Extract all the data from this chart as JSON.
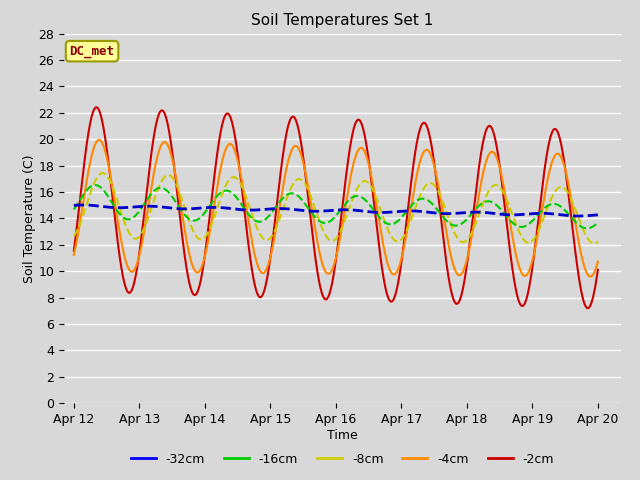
{
  "title": "Soil Temperatures Set 1",
  "xlabel": "Time",
  "ylabel": "Soil Temperature (C)",
  "annotation": "DC_met",
  "annotation_color": "#8b0000",
  "annotation_bg": "#ffff99",
  "annotation_edge": "#999900",
  "bg_color": "#d8d8d8",
  "ylim": [
    0,
    28
  ],
  "yticks": [
    0,
    2,
    4,
    6,
    8,
    10,
    12,
    14,
    16,
    18,
    20,
    22,
    24,
    26,
    28
  ],
  "x_tick_labels": [
    "Apr 12",
    "Apr 13",
    "Apr 14",
    "Apr 15",
    "Apr 16",
    "Apr 17",
    "Apr 18",
    "Apr 19",
    "Apr 20"
  ],
  "x_tick_positions": [
    0,
    1,
    2,
    3,
    4,
    5,
    6,
    7,
    8
  ],
  "legend_labels": [
    "-32cm",
    "-16cm",
    "-8cm",
    "-4cm",
    "-2cm"
  ],
  "legend_colors": [
    "#0000ff",
    "#00cc00",
    "#cccc00",
    "#ff8c00",
    "#cc0000"
  ],
  "legend_linestyles": [
    "-",
    "-",
    "-",
    "-",
    "-"
  ],
  "series_32cm_color": "#0000cc",
  "series_16cm_color": "#00cc00",
  "series_8cm_color": "#cccc00",
  "series_4cm_color": "#ff8800",
  "series_2cm_color": "#cc0000"
}
